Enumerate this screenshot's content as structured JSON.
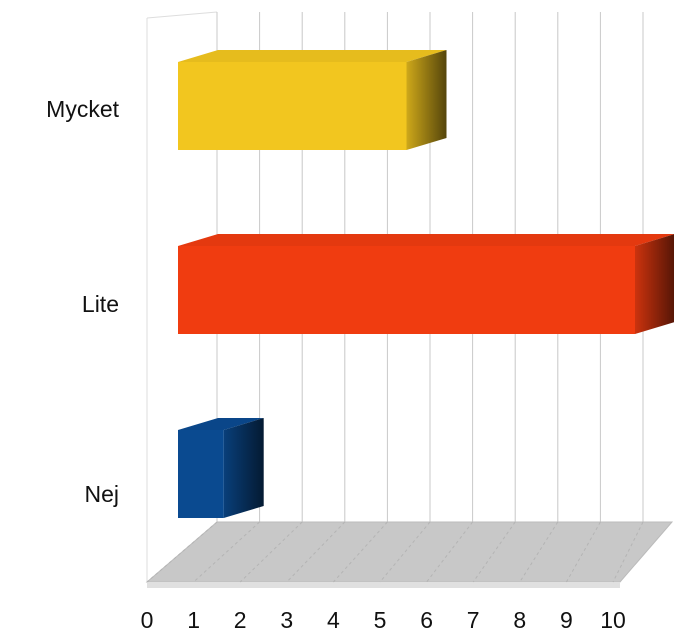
{
  "chart_data": {
    "type": "bar3d_horizontal",
    "categories": [
      "Mycket",
      "Lite",
      "Nej"
    ],
    "values": [
      5,
      10,
      1
    ],
    "colors": [
      "#f2c61f",
      "#f03c10",
      "#0a4a90"
    ],
    "xlim": [
      0,
      10
    ],
    "xticks": [
      0,
      1,
      2,
      3,
      4,
      5,
      6,
      7,
      8,
      9,
      10
    ],
    "grid": true
  }
}
